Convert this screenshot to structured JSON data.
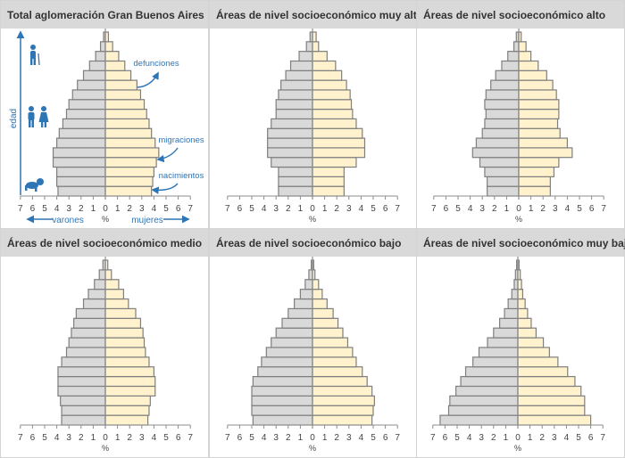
{
  "colors": {
    "varones": "#d9d9d9",
    "mujeres": "#fff2cc",
    "bar_stroke": "#7f7f7f",
    "annotation": "#2e75b6",
    "header_bg": "#d9d9d9",
    "title_text": "#333333"
  },
  "chart_data": [
    {
      "type": "population_pyramid",
      "title": "Total aglomeración Gran Buenos Aires",
      "left_label": "varones",
      "right_label": "mujeres",
      "unit": "%",
      "ylabel": "edad",
      "ticks": [
        "7",
        "6",
        "5",
        "4",
        "3",
        "2",
        "1",
        "0",
        "1",
        "2",
        "3",
        "4",
        "5",
        "6",
        "7"
      ],
      "xlim": [
        -7,
        7
      ],
      "annotations": [
        "defunciones",
        "migraciones",
        "nacimientos"
      ],
      "icons": [
        "elderly-person-icon",
        "adult-couple-icon",
        "baby-icon"
      ],
      "series": [
        {
          "name": "varones",
          "values": [
            3.9,
            4.0,
            4.0,
            4.3,
            4.3,
            4.0,
            3.8,
            3.5,
            3.2,
            3.0,
            2.7,
            2.3,
            1.8,
            1.3,
            0.8,
            0.4,
            0.15
          ]
        },
        {
          "name": "mujeres",
          "values": [
            3.8,
            3.9,
            4.0,
            4.2,
            4.4,
            4.1,
            3.8,
            3.6,
            3.4,
            3.2,
            2.9,
            2.6,
            2.1,
            1.6,
            1.1,
            0.6,
            0.25
          ]
        }
      ]
    },
    {
      "type": "population_pyramid",
      "title": "Áreas de nivel socioeconómico muy alto",
      "unit": "%",
      "ticks": [
        "7",
        "6",
        "5",
        "4",
        "3",
        "2",
        "1",
        "0",
        "1",
        "2",
        "3",
        "4",
        "5",
        "6",
        "7"
      ],
      "xlim": [
        -7,
        7
      ],
      "series": [
        {
          "name": "varones",
          "values": [
            2.8,
            2.8,
            2.8,
            3.4,
            3.7,
            3.7,
            3.7,
            3.4,
            3.0,
            3.0,
            2.8,
            2.6,
            2.2,
            1.8,
            1.1,
            0.5,
            0.2
          ]
        },
        {
          "name": "mujeres",
          "values": [
            2.6,
            2.6,
            2.6,
            3.6,
            4.3,
            4.3,
            4.1,
            3.6,
            3.3,
            3.2,
            3.1,
            2.8,
            2.4,
            1.9,
            1.2,
            0.5,
            0.3
          ]
        }
      ]
    },
    {
      "type": "population_pyramid",
      "title": "Áreas de nivel socioeconómico alto",
      "unit": "%",
      "ticks": [
        "7",
        "6",
        "5",
        "4",
        "3",
        "2",
        "1",
        "0",
        "1",
        "2",
        "3",
        "4",
        "5",
        "6",
        "7"
      ],
      "xlim": [
        -7,
        7
      ],
      "series": [
        {
          "name": "varones",
          "values": [
            2.6,
            2.6,
            2.8,
            3.2,
            3.8,
            3.5,
            3.0,
            2.8,
            2.7,
            2.8,
            2.7,
            2.3,
            1.9,
            1.4,
            0.9,
            0.4,
            0.2
          ]
        },
        {
          "name": "mujeres",
          "values": [
            2.6,
            2.6,
            2.9,
            3.3,
            4.4,
            4.0,
            3.4,
            3.2,
            3.3,
            3.3,
            3.1,
            2.8,
            2.3,
            1.6,
            1.0,
            0.6,
            0.2
          ]
        }
      ]
    },
    {
      "type": "population_pyramid",
      "title": "Áreas de nivel socioeconómico medio",
      "unit": "%",
      "ticks": [
        "7",
        "6",
        "5",
        "4",
        "3",
        "2",
        "1",
        "0",
        "1",
        "2",
        "3",
        "4",
        "5",
        "6",
        "7"
      ],
      "xlim": [
        -7,
        7
      ],
      "series": [
        {
          "name": "varones",
          "values": [
            3.6,
            3.6,
            3.7,
            3.9,
            3.9,
            3.9,
            3.6,
            3.2,
            3.0,
            2.8,
            2.6,
            2.4,
            1.8,
            1.4,
            0.9,
            0.5,
            0.2
          ]
        },
        {
          "name": "mujeres",
          "values": [
            3.5,
            3.6,
            3.7,
            4.1,
            4.1,
            4.0,
            3.6,
            3.3,
            3.2,
            3.1,
            2.9,
            2.5,
            1.9,
            1.5,
            1.1,
            0.5,
            0.2
          ]
        }
      ]
    },
    {
      "type": "population_pyramid",
      "title": "Áreas de nivel socioeconómico bajo",
      "unit": "%",
      "ticks": [
        "7",
        "6",
        "5",
        "4",
        "3",
        "2",
        "1",
        "0",
        "1",
        "2",
        "3",
        "4",
        "5",
        "6",
        "7"
      ],
      "xlim": [
        -7,
        7
      ],
      "series": [
        {
          "name": "varones",
          "values": [
            4.9,
            5.0,
            5.0,
            5.0,
            4.9,
            4.5,
            4.2,
            3.8,
            3.4,
            3.0,
            2.5,
            2.0,
            1.5,
            1.0,
            0.6,
            0.3,
            0.1
          ]
        },
        {
          "name": "mujeres",
          "values": [
            4.9,
            5.0,
            5.1,
            4.9,
            4.5,
            4.1,
            3.6,
            3.3,
            2.9,
            2.5,
            2.1,
            1.7,
            1.2,
            0.8,
            0.5,
            0.2,
            0.1
          ]
        }
      ]
    },
    {
      "type": "population_pyramid",
      "title": "Áreas de nivel socioeconómico muy bajo",
      "unit": "%",
      "ticks": [
        "7",
        "6",
        "5",
        "4",
        "3",
        "2",
        "1",
        "0",
        "1",
        "2",
        "3",
        "4",
        "5",
        "6",
        "7"
      ],
      "xlim": [
        -7,
        7
      ],
      "series": [
        {
          "name": "varones",
          "values": [
            6.4,
            5.7,
            5.6,
            5.1,
            4.7,
            4.3,
            3.7,
            3.2,
            2.5,
            2.0,
            1.5,
            1.1,
            0.8,
            0.5,
            0.3,
            0.2,
            0.1
          ]
        },
        {
          "name": "mujeres",
          "values": [
            6.0,
            5.5,
            5.5,
            5.2,
            4.7,
            4.1,
            3.3,
            2.6,
            2.1,
            1.5,
            1.1,
            0.8,
            0.6,
            0.4,
            0.3,
            0.2,
            0.1
          ]
        }
      ]
    }
  ]
}
